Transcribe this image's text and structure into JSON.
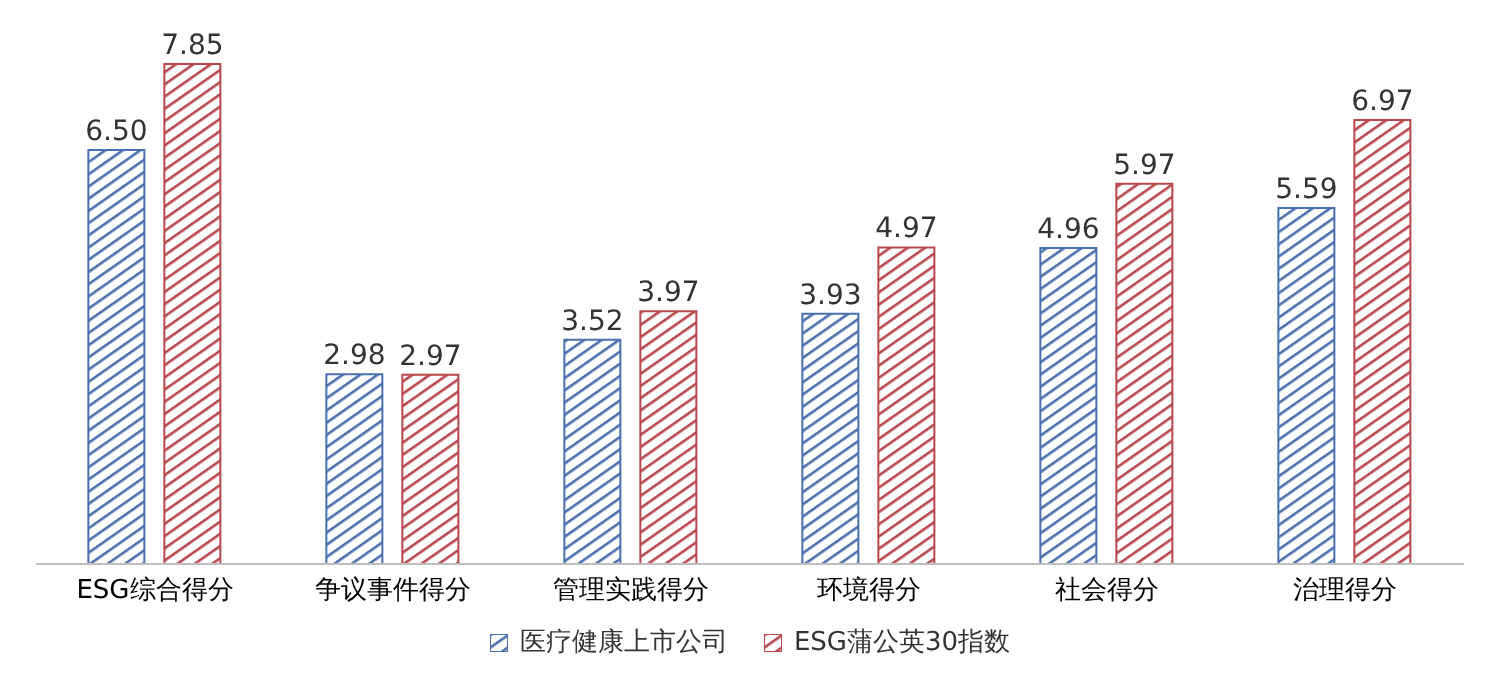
{
  "chart_data": {
    "type": "bar",
    "categories": [
      "ESG综合得分",
      "争议事件得分",
      "管理实践得分",
      "环境得分",
      "社会得分",
      "治理得分"
    ],
    "series": [
      {
        "name": "医疗健康上市公司",
        "color": "#4a6fae",
        "values": [
          6.5,
          2.98,
          3.52,
          3.93,
          4.96,
          5.59
        ],
        "value_labels": [
          "6.50",
          "2.98",
          "3.52",
          "3.93",
          "4.96",
          "5.59"
        ]
      },
      {
        "name": "ESG蒲公英30指数",
        "color": "#b8474b",
        "values": [
          7.85,
          2.97,
          3.97,
          4.97,
          5.97,
          6.97
        ],
        "value_labels": [
          "7.85",
          "2.97",
          "3.97",
          "4.97",
          "5.97",
          "6.97"
        ]
      }
    ],
    "legend": "bottom",
    "grid": false
  }
}
